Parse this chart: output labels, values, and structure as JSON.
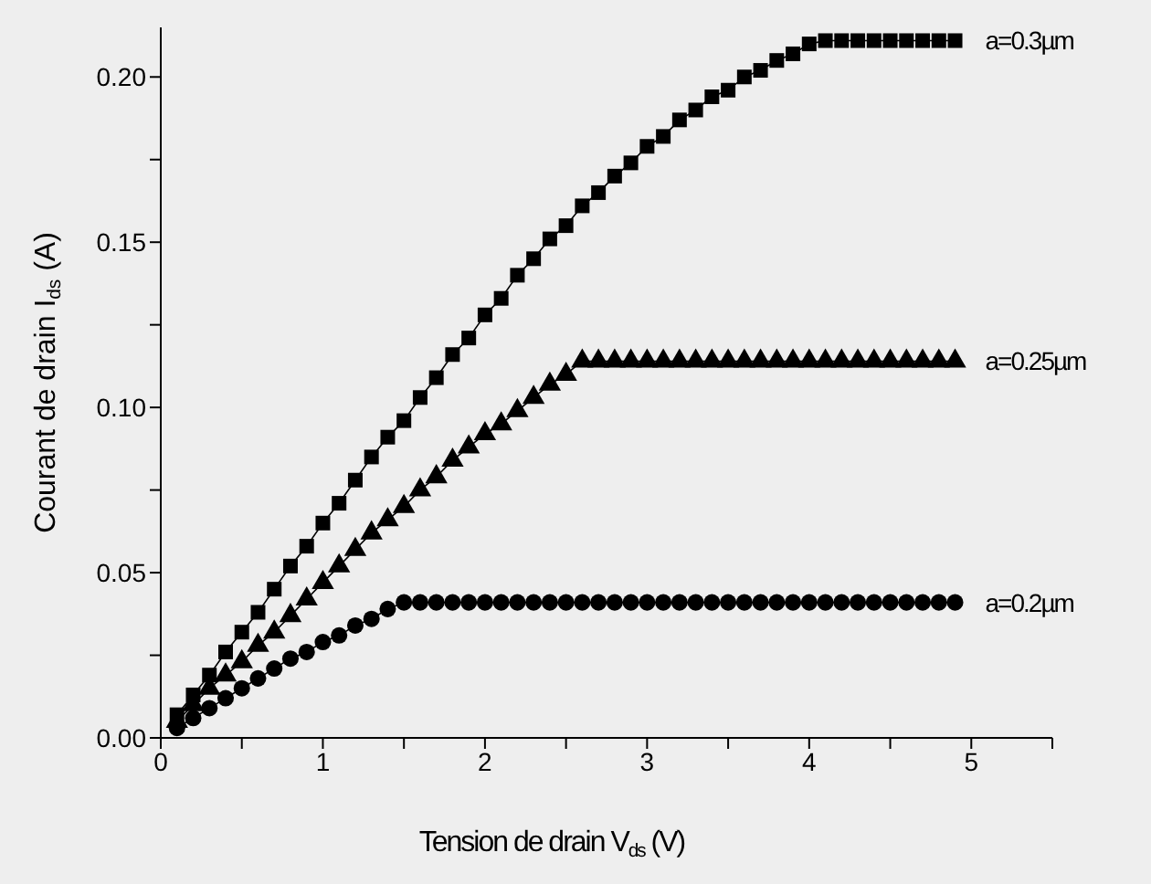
{
  "chart_data": {
    "type": "line",
    "xlabel": "Tension de drain V$_{ds}$ (V)",
    "ylabel": "Courant de drain I$_{ds}$ (A)",
    "x": [
      0.1,
      0.2,
      0.3,
      0.4,
      0.5,
      0.6,
      0.7,
      0.8,
      0.9,
      1.0,
      1.1,
      1.2,
      1.3,
      1.4,
      1.5,
      1.6,
      1.7,
      1.8,
      1.9,
      2.0,
      2.1,
      2.2,
      2.3,
      2.4,
      2.5,
      2.6,
      2.7,
      2.8,
      2.9,
      3.0,
      3.1,
      3.2,
      3.3,
      3.4,
      3.5,
      3.6,
      3.7,
      3.8,
      3.9,
      4.0,
      4.1,
      4.2,
      4.3,
      4.4,
      4.5,
      4.6,
      4.7,
      4.8,
      4.9
    ],
    "series": [
      {
        "name": "a=0.3µm",
        "color": "#000000",
        "marker": "square",
        "values": [
          0.007,
          0.013,
          0.019,
          0.026,
          0.032,
          0.038,
          0.045,
          0.052,
          0.058,
          0.065,
          0.071,
          0.078,
          0.085,
          0.091,
          0.096,
          0.103,
          0.109,
          0.116,
          0.121,
          0.128,
          0.133,
          0.14,
          0.145,
          0.151,
          0.155,
          0.161,
          0.165,
          0.17,
          0.174,
          0.179,
          0.182,
          0.187,
          0.19,
          0.194,
          0.196,
          0.2,
          0.202,
          0.205,
          0.207,
          0.21,
          0.211,
          0.211,
          0.211,
          0.211,
          0.211,
          0.211,
          0.211,
          0.211,
          0.211
        ]
      },
      {
        "name": "a=0.25µm",
        "color": "#000000",
        "marker": "triangle",
        "values": [
          0.005,
          0.01,
          0.015,
          0.019,
          0.023,
          0.028,
          0.032,
          0.037,
          0.042,
          0.047,
          0.052,
          0.057,
          0.062,
          0.066,
          0.07,
          0.075,
          0.079,
          0.084,
          0.088,
          0.092,
          0.095,
          0.099,
          0.103,
          0.107,
          0.11,
          0.114,
          0.114,
          0.114,
          0.114,
          0.114,
          0.114,
          0.114,
          0.114,
          0.114,
          0.114,
          0.114,
          0.114,
          0.114,
          0.114,
          0.114,
          0.114,
          0.114,
          0.114,
          0.114,
          0.114,
          0.114,
          0.114,
          0.114,
          0.114
        ]
      },
      {
        "name": "a=0.2µm",
        "color": "#000000",
        "marker": "circle",
        "values": [
          0.003,
          0.006,
          0.009,
          0.012,
          0.015,
          0.018,
          0.021,
          0.024,
          0.026,
          0.029,
          0.031,
          0.034,
          0.036,
          0.039,
          0.041,
          0.041,
          0.041,
          0.041,
          0.041,
          0.041,
          0.041,
          0.041,
          0.041,
          0.041,
          0.041,
          0.041,
          0.041,
          0.041,
          0.041,
          0.041,
          0.041,
          0.041,
          0.041,
          0.041,
          0.041,
          0.041,
          0.041,
          0.041,
          0.041,
          0.041,
          0.041,
          0.041,
          0.041,
          0.041,
          0.041,
          0.041,
          0.041,
          0.041,
          0.041
        ]
      }
    ],
    "xlim": [
      0,
      5.5
    ],
    "xticks": [
      0,
      {
        "value": 0.5,
        "label": null
      },
      1,
      {
        "value": 1.5,
        "label": null
      },
      2,
      {
        "value": 2.5,
        "label": null
      },
      3,
      {
        "value": 3.5,
        "label": null
      },
      4,
      {
        "value": 4.5,
        "label": null
      },
      5,
      {
        "value": 5.5,
        "label": null
      }
    ],
    "ylim": [
      0,
      0.215
    ],
    "yticks": [
      {
        "value": 0,
        "label": "0.00"
      },
      {
        "value": 0.025,
        "label": null
      },
      {
        "value": 0.05,
        "label": "0.05"
      },
      {
        "value": 0.075,
        "label": null
      },
      {
        "value": 0.1,
        "label": "0.10"
      },
      {
        "value": 0.125,
        "label": null
      },
      {
        "value": 0.15,
        "label": "0.15"
      },
      {
        "value": 0.175,
        "label": null
      },
      {
        "value": 0.2,
        "label": "0.20"
      }
    ],
    "line_style": "solid",
    "legend": false,
    "grid": false
  }
}
